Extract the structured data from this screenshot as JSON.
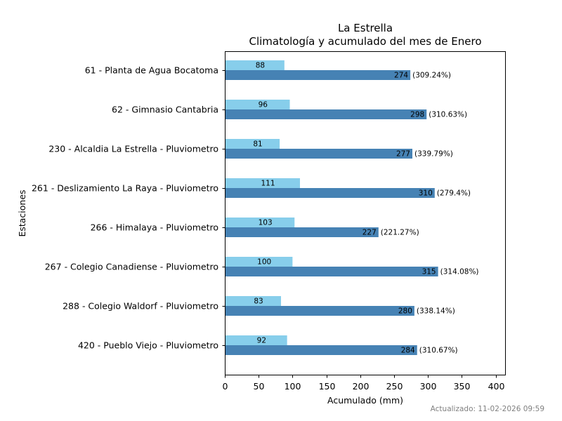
{
  "chart_data": {
    "type": "bar",
    "orientation": "horizontal",
    "title": "La Estrella",
    "subtitle": "Climatología y acumulado del mes de Enero",
    "xlabel": "Acumulado (mm)",
    "ylabel": "Estaciones",
    "xlim": [
      0,
      415
    ],
    "xticks": [
      0,
      50,
      100,
      150,
      200,
      250,
      300,
      350,
      400
    ],
    "xtick_labels": [
      "0",
      "50",
      "100",
      "150",
      "200",
      "250",
      "300",
      "350",
      "400"
    ],
    "grid": false,
    "categories": [
      "61 - Planta de Agua Bocatoma",
      "62 - Gimnasio Cantabria",
      "230 - Alcaldia La Estrella - Pluviometro",
      "261 - Deslizamiento La Raya - Pluviometro",
      "266 - Himalaya - Pluviometro",
      "267 - Colegio Canadiense - Pluviometro",
      "288 - Colegio Waldorf - Pluviometro",
      "420 - Pueblo Viejo - Pluviometro"
    ],
    "series": [
      {
        "name": "Climatología",
        "color": "#87ceeb",
        "values": [
          88,
          96,
          81,
          111,
          103,
          100,
          83,
          92
        ],
        "value_labels": [
          "88",
          "96",
          "81",
          "111",
          "103",
          "100",
          "83",
          "92"
        ]
      },
      {
        "name": "Acumulado",
        "color": "#4682b4",
        "values": [
          274,
          298,
          277,
          310,
          227,
          315,
          280,
          284
        ],
        "value_labels": [
          "274",
          "298",
          "277",
          "310",
          "227",
          "315",
          "280",
          "284"
        ],
        "percent_labels": [
          "(309.24%)",
          "(310.63%)",
          "(339.79%)",
          "(279.4%)",
          "(221.27%)",
          "(314.08%)",
          "(338.14%)",
          "(310.67%)"
        ]
      }
    ]
  },
  "footer": {
    "updated": "Actualizado: 11-02-2026 09:59"
  }
}
